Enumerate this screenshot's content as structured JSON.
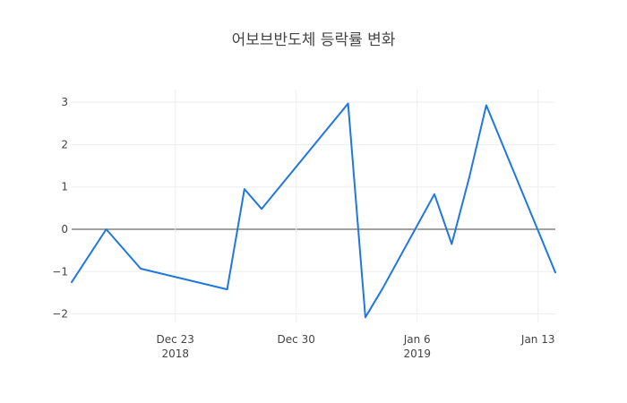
{
  "chart_data": {
    "type": "line",
    "title": "어보브반도체 등락률 변화",
    "xlabel": "",
    "ylabel": "",
    "x_range": [
      "2018-12-17",
      "2019-01-14"
    ],
    "ylim": [
      -2.2,
      3.3
    ],
    "grid": true,
    "legend": "none",
    "x_ticks": [
      {
        "date": "2018-12-23",
        "label": "Dec 23",
        "sublabel": "2018"
      },
      {
        "date": "2018-12-30",
        "label": "Dec 30",
        "sublabel": ""
      },
      {
        "date": "2019-01-06",
        "label": "Jan 6",
        "sublabel": "2019"
      },
      {
        "date": "2019-01-13",
        "label": "Jan 13",
        "sublabel": ""
      }
    ],
    "y_ticks": [
      {
        "value": 3,
        "label": "3"
      },
      {
        "value": 2,
        "label": "2"
      },
      {
        "value": 1,
        "label": "1"
      },
      {
        "value": 0,
        "label": "0"
      },
      {
        "value": -1,
        "label": "−1"
      },
      {
        "value": -2,
        "label": "−2"
      }
    ],
    "series": [
      {
        "color": "#1f77e0",
        "points": [
          {
            "x": "2018-12-17",
            "y": -1.25
          },
          {
            "x": "2018-12-19",
            "y": 0.0
          },
          {
            "x": "2018-12-21",
            "y": -0.93
          },
          {
            "x": "2018-12-26",
            "y": -1.42
          },
          {
            "x": "2018-12-27",
            "y": 0.95
          },
          {
            "x": "2018-12-28",
            "y": 0.48
          },
          {
            "x": "2019-01-02",
            "y": 2.97
          },
          {
            "x": "2019-01-03",
            "y": -2.08
          },
          {
            "x": "2019-01-04",
            "y": -1.4
          },
          {
            "x": "2019-01-07",
            "y": 0.83
          },
          {
            "x": "2019-01-08",
            "y": -0.35
          },
          {
            "x": "2019-01-09",
            "y": 1.2
          },
          {
            "x": "2019-01-10",
            "y": 2.93
          },
          {
            "x": "2019-01-14",
            "y": -1.02
          }
        ]
      }
    ]
  }
}
